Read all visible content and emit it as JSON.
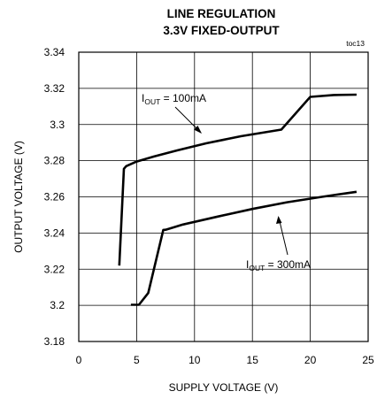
{
  "chart_data": {
    "type": "line",
    "title": "LINE REGULATION",
    "subtitle": "3.3V FIXED-OUTPUT",
    "figure_tag": "toc13",
    "xlabel": "SUPPLY VOLTAGE (V)",
    "ylabel": "OUTPUT VOLTAGE (V)",
    "xlim": [
      0,
      25
    ],
    "ylim": [
      3.18,
      3.34
    ],
    "x_ticks": [
      0,
      5,
      10,
      15,
      20,
      25
    ],
    "x_tick_labels": [
      "0",
      "5",
      "10",
      "15",
      "20",
      "25"
    ],
    "y_ticks": [
      3.18,
      3.2,
      3.22,
      3.24,
      3.26,
      3.28,
      3.3,
      3.32,
      3.34
    ],
    "y_tick_labels": [
      "3.18",
      "3.2",
      "3.22",
      "3.24",
      "3.26",
      "3.28",
      "3.3",
      "3.32",
      "3.34"
    ],
    "grid": true,
    "legend": "none",
    "series": [
      {
        "label_main": "I",
        "label_sub": "OUT",
        "label_rest": " = 100mA",
        "color": "#000000",
        "x": [
          3.5,
          3.9,
          4.1,
          5.0,
          6.5,
          8.5,
          11.0,
          14.0,
          17.5,
          20.0,
          22.0,
          24.0
        ],
        "y": [
          3.222,
          3.2755,
          3.277,
          3.2795,
          3.2823,
          3.2857,
          3.2896,
          3.2935,
          3.2972,
          3.3153,
          3.3163,
          3.3165
        ]
      },
      {
        "label_main": "I",
        "label_sub": "OUT",
        "label_rest": " = 300mA",
        "color": "#000000",
        "x": [
          4.5,
          5.2,
          6.0,
          7.3,
          7.5,
          9.0,
          12.0,
          15.0,
          18.0,
          21.0,
          24.0
        ],
        "y": [
          3.2003,
          3.2003,
          3.2068,
          3.2417,
          3.2418,
          3.2447,
          3.2491,
          3.2533,
          3.257,
          3.26,
          3.2628
        ]
      }
    ]
  }
}
